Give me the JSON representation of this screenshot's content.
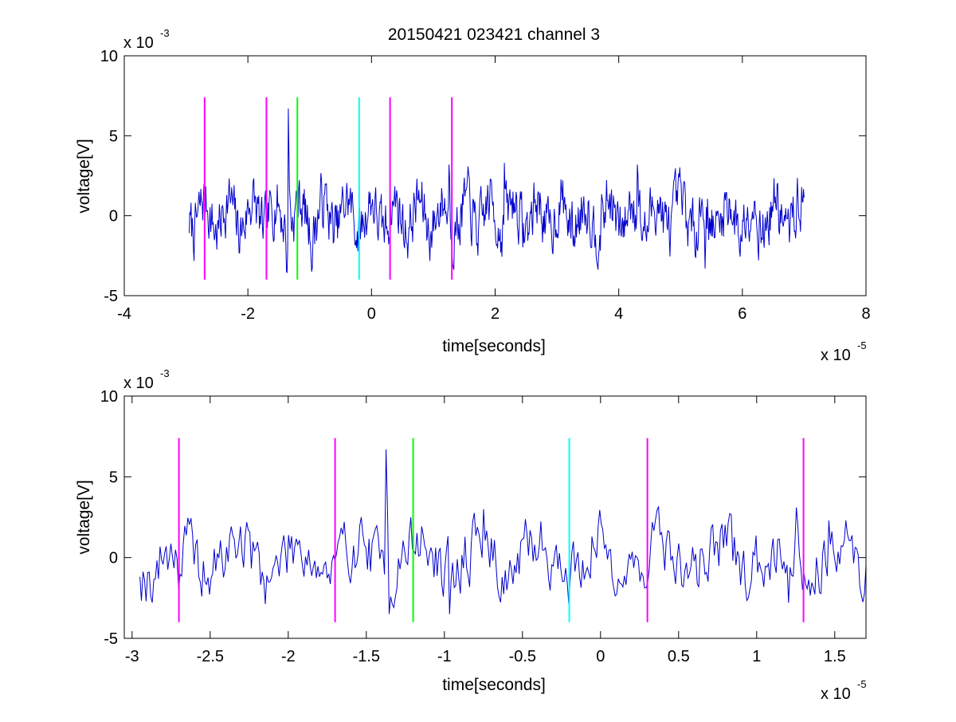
{
  "figure": {
    "background": "#ffffff"
  },
  "chart_data": [
    {
      "type": "line",
      "title": "20150421 023421 channel 3",
      "xlabel": "time[seconds]",
      "ylabel": "voltage[V]",
      "x_exponent_label": {
        "base": "x 10",
        "exp": "-5"
      },
      "y_exponent_label": {
        "base": "x 10",
        "exp": "-3"
      },
      "xlim": [
        -4,
        8
      ],
      "ylim": [
        -5,
        10
      ],
      "xticks": [
        -4,
        -2,
        0,
        2,
        4,
        6,
        8
      ],
      "xtick_labels": [
        "-4",
        "-2",
        "0",
        "2",
        "4",
        "6",
        "8"
      ],
      "yticks": [
        -5,
        0,
        5,
        10
      ],
      "ytick_labels": [
        "-5",
        "0",
        "5",
        "10"
      ],
      "grid": false,
      "series": [
        {
          "color": "#0000cc",
          "x_range": [
            -2.95,
            7.0
          ],
          "points": 1000,
          "noise_amplitude": 0.9,
          "spikes": [
            {
              "x": -1.35,
              "y": 6.7
            },
            {
              "x": -1.38,
              "y": -3.5
            },
            {
              "x": -0.97,
              "y": -3.5
            },
            {
              "x": 2.15,
              "y": 3.3
            },
            {
              "x": 4.3,
              "y": 3.2
            },
            {
              "x": 5.4,
              "y": -3.3
            },
            {
              "x": 1.25,
              "y": 3.2
            }
          ]
        }
      ],
      "markers": [
        {
          "x": -2.7,
          "y0": -4,
          "y1": 7.4,
          "color": "#ff00ff"
        },
        {
          "x": -1.7,
          "y0": -4,
          "y1": 7.4,
          "color": "#ff00ff"
        },
        {
          "x": -1.2,
          "y0": -4,
          "y1": 7.4,
          "color": "#00ff00"
        },
        {
          "x": -0.2,
          "y0": -4,
          "y1": 7.4,
          "color": "#00ffff"
        },
        {
          "x": 0.3,
          "y0": -4,
          "y1": 7.4,
          "color": "#ff00ff"
        },
        {
          "x": 1.3,
          "y0": -4,
          "y1": 7.4,
          "color": "#ff00ff"
        }
      ]
    },
    {
      "type": "line",
      "title": "",
      "xlabel": "time[seconds]",
      "ylabel": "voltage[V]",
      "x_exponent_label": {
        "base": "x 10",
        "exp": "-5"
      },
      "y_exponent_label": {
        "base": "x 10",
        "exp": "-3"
      },
      "xlim": [
        -3.05,
        1.7
      ],
      "ylim": [
        -5,
        10
      ],
      "xticks": [
        -3,
        -2.5,
        -2,
        -1.5,
        -1,
        -0.5,
        0,
        0.5,
        1,
        1.5
      ],
      "xtick_labels": [
        "-3",
        "-2.5",
        "-2",
        "-1.5",
        "-1",
        "-0.5",
        "0",
        "0.5",
        "1",
        "1.5"
      ],
      "yticks": [
        -5,
        0,
        5,
        10
      ],
      "ytick_labels": [
        "-5",
        "0",
        "5",
        "10"
      ],
      "grid": false,
      "series": [
        {
          "color": "#0000cc",
          "x_range": [
            -2.95,
            1.7
          ],
          "points": 470,
          "noise_amplitude": 1.0,
          "spikes": [
            {
              "x": -1.37,
              "y": 6.7
            },
            {
              "x": -1.35,
              "y": -3.5
            },
            {
              "x": -0.97,
              "y": -3.5
            },
            {
              "x": -0.75,
              "y": 3.0
            },
            {
              "x": 1.25,
              "y": 3.1
            },
            {
              "x": 1.46,
              "y": 2.3
            },
            {
              "x": 1.2,
              "y": -2.8
            },
            {
              "x": -2.7,
              "y": -2.0
            }
          ]
        }
      ],
      "markers": [
        {
          "x": -2.7,
          "y0": -4,
          "y1": 7.4,
          "color": "#ff00ff"
        },
        {
          "x": -1.7,
          "y0": -4,
          "y1": 7.4,
          "color": "#ff00ff"
        },
        {
          "x": -1.2,
          "y0": -4,
          "y1": 7.4,
          "color": "#00ff00"
        },
        {
          "x": -0.2,
          "y0": -4,
          "y1": 7.4,
          "color": "#00ffff"
        },
        {
          "x": 0.3,
          "y0": -4,
          "y1": 7.4,
          "color": "#ff00ff"
        },
        {
          "x": 1.3,
          "y0": -4,
          "y1": 7.4,
          "color": "#ff00ff"
        }
      ]
    }
  ]
}
